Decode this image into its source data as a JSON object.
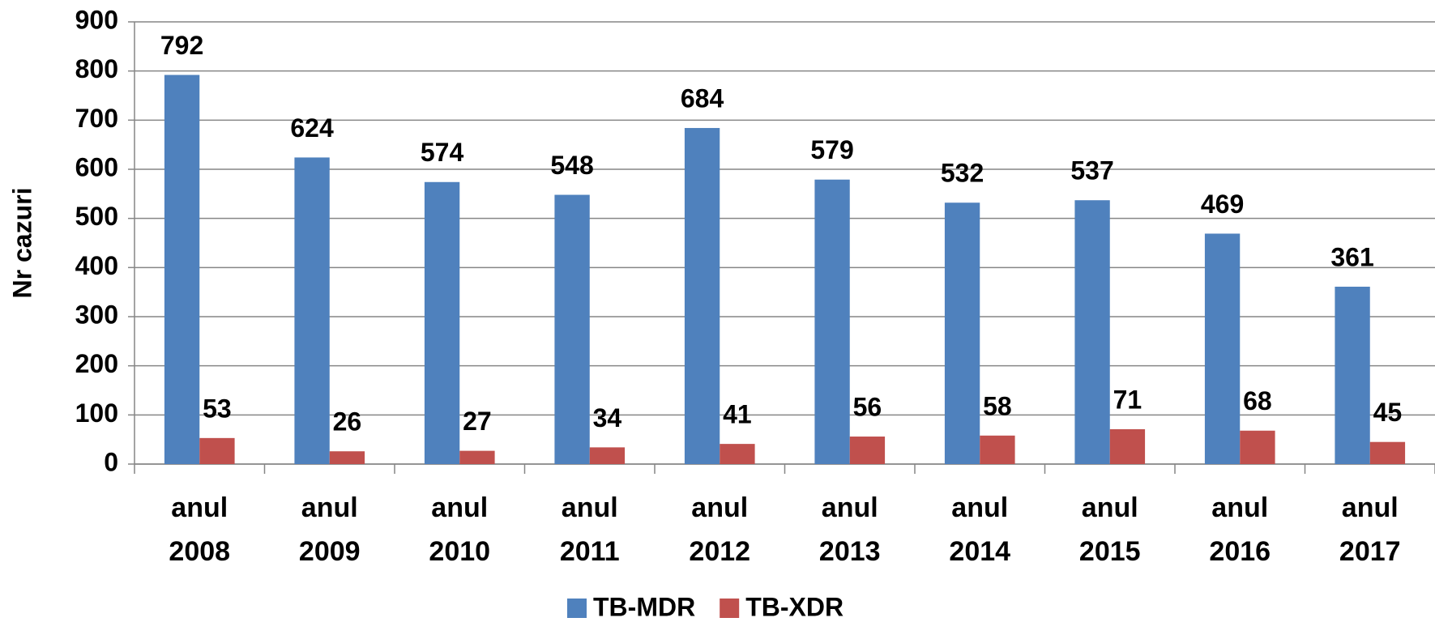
{
  "chart_data": {
    "type": "bar",
    "y_label": "Nr cazuri",
    "categories": [
      "anul 2008",
      "anul 2009",
      "anul 2010",
      "anul 2011",
      "anul 2012",
      "anul 2013",
      "anul 2014",
      "anul 2015",
      "anul 2016",
      "anul 2017"
    ],
    "series": [
      {
        "name": "TB-MDR",
        "color": "#4f81bd",
        "values": [
          792,
          624,
          574,
          548,
          684,
          579,
          532,
          537,
          469,
          361
        ]
      },
      {
        "name": "TB-XDR",
        "color": "#c0504d",
        "values": [
          53,
          26,
          27,
          34,
          41,
          56,
          58,
          71,
          68,
          45
        ]
      }
    ],
    "ylim": [
      0,
      900
    ],
    "yticks": [
      0,
      100,
      200,
      300,
      400,
      500,
      600,
      700,
      800,
      900
    ],
    "grid": true,
    "legend": "bottom"
  }
}
